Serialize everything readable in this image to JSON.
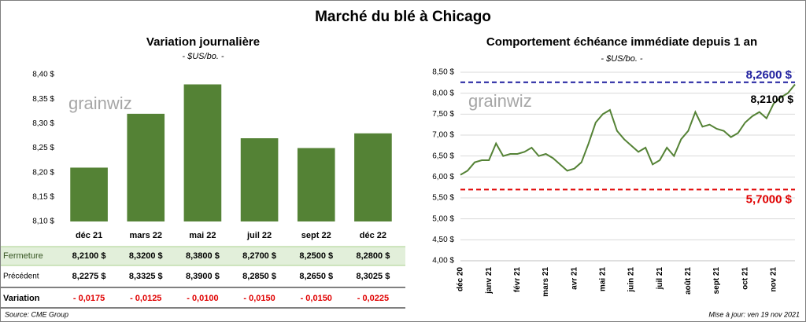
{
  "title": "Marché du blé à Chicago",
  "chart_data": [
    {
      "type": "bar",
      "title": "Variation journalière",
      "subtitle": "- $US/bo. -",
      "watermark": "grainwiz",
      "categories": [
        "déc 21",
        "mars 22",
        "mai 22",
        "juil 22",
        "sept 22",
        "déc 22"
      ],
      "values": [
        8.21,
        8.32,
        8.38,
        8.27,
        8.25,
        8.28
      ],
      "color": "#548235",
      "ylim": [
        8.1,
        8.4
      ],
      "yticks": [
        {
          "value": 8.1,
          "label": "8,10 $"
        },
        {
          "value": 8.15,
          "label": "8,15 $"
        },
        {
          "value": 8.2,
          "label": "8,20 $"
        },
        {
          "value": 8.25,
          "label": "8,25 $"
        },
        {
          "value": 8.3,
          "label": "8,30 $"
        },
        {
          "value": 8.35,
          "label": "8,35 $"
        },
        {
          "value": 8.4,
          "label": "8,40 $"
        }
      ]
    },
    {
      "type": "line",
      "title": "Comportement échéance immédiate depuis 1 an",
      "subtitle": "- $US/bo. -",
      "watermark": "grainwiz",
      "categories": [
        "déc 20",
        null,
        null,
        null,
        "janv 21",
        null,
        null,
        null,
        "févr 21",
        null,
        null,
        null,
        "mars 21",
        null,
        null,
        null,
        "avr 21",
        null,
        null,
        null,
        "mai 21",
        null,
        null,
        null,
        "juin 21",
        null,
        null,
        null,
        "juil 21",
        null,
        null,
        null,
        "août 21",
        null,
        null,
        null,
        "sept 21",
        null,
        null,
        null,
        "oct 21",
        null,
        null,
        null,
        "nov 21",
        null,
        null,
        null
      ],
      "values": [
        6.05,
        6.15,
        6.35,
        6.4,
        6.4,
        6.8,
        6.5,
        6.55,
        6.55,
        6.6,
        6.7,
        6.5,
        6.55,
        6.45,
        6.3,
        6.15,
        6.2,
        6.35,
        6.8,
        7.3,
        7.5,
        7.6,
        7.1,
        6.9,
        6.75,
        6.6,
        6.7,
        6.3,
        6.4,
        6.7,
        6.5,
        6.9,
        7.1,
        7.55,
        7.2,
        7.25,
        7.15,
        7.1,
        6.95,
        7.05,
        7.3,
        7.45,
        7.55,
        7.4,
        7.75,
        7.9,
        8.0,
        8.21
      ],
      "color": "#548235",
      "ylim": [
        4.0,
        8.5
      ],
      "yticks": [
        {
          "value": 4.0,
          "label": "4,00 $"
        },
        {
          "value": 4.5,
          "label": "4,50 $"
        },
        {
          "value": 5.0,
          "label": "5,00 $"
        },
        {
          "value": 5.5,
          "label": "5,50 $"
        },
        {
          "value": 6.0,
          "label": "6,00 $"
        },
        {
          "value": 6.5,
          "label": "6,50 $"
        },
        {
          "value": 7.0,
          "label": "7,00 $"
        },
        {
          "value": 7.5,
          "label": "7,50 $"
        },
        {
          "value": 8.0,
          "label": "8,00 $"
        },
        {
          "value": 8.5,
          "label": "8,50 $"
        }
      ],
      "ref_lines": [
        {
          "value": 8.26,
          "label": "8,2600 $",
          "color": "#1f1f9f"
        },
        {
          "value": 5.7,
          "label": "5,7000 $",
          "color": "#e00000"
        }
      ],
      "last_label": {
        "value": 8.21,
        "label": "8,2100 $"
      }
    }
  ],
  "table": {
    "rows": [
      {
        "label": "Fermeture",
        "cells": [
          "8,2100 $",
          "8,3200 $",
          "8,3800 $",
          "8,2700 $",
          "8,2500 $",
          "8,2800 $"
        ]
      },
      {
        "label": "Précédent",
        "cells": [
          "8,2275 $",
          "8,3325 $",
          "8,3900 $",
          "8,2850 $",
          "8,2650 $",
          "8,3025 $"
        ]
      },
      {
        "label": "Variation",
        "cells": [
          "- 0,0175",
          "- 0,0125",
          "- 0,0100",
          "- 0,0150",
          "- 0,0150",
          "- 0,0225"
        ]
      }
    ]
  },
  "source": "Source: CME Group",
  "updated": "Mise à jour: ven 19 nov 2021"
}
